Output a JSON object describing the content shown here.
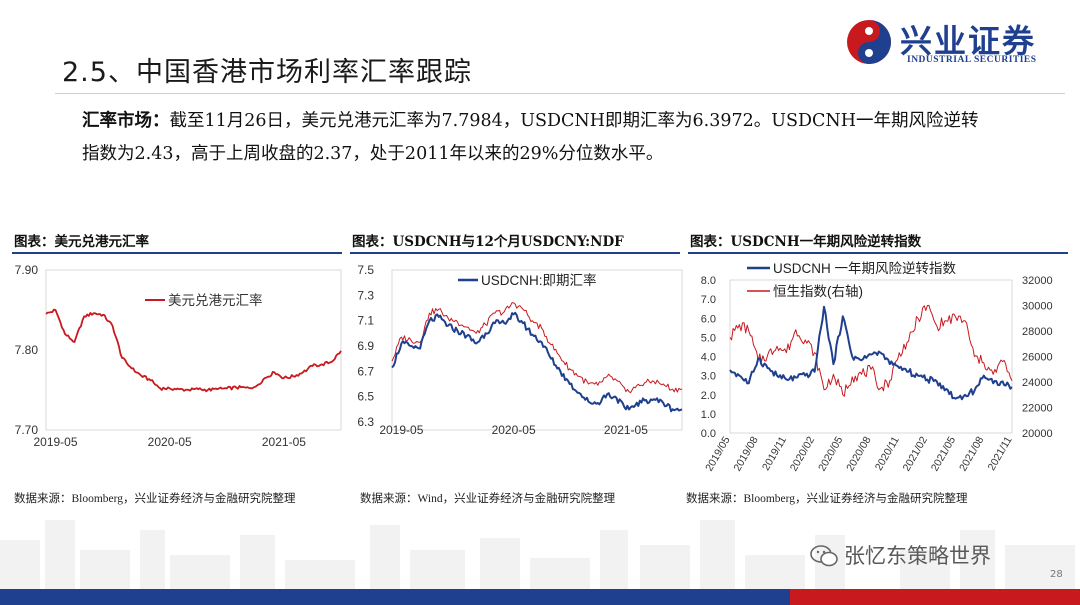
{
  "page": {
    "title": "2.5、中国香港市场利率汇率跟踪",
    "logo": {
      "cn": "兴业证券",
      "en": "INDUSTRIAL SECURITIES"
    },
    "summary": {
      "lead": "汇率市场：",
      "line1": "截至11月26日，美元兑港元汇率为7.7984，USDCNH即期汇率为6.3972。USDCNH一年期风险逆转",
      "line2": "指数为2.43，高于上周收盘的2.37，处于2011年以来的29%分位数水平。"
    },
    "watermark": "张忆东策略世界",
    "page_number": "28",
    "colors": {
      "red": "#c7191e",
      "navy": "#1f3f8f",
      "brand_blue": "#1f3f8f"
    }
  },
  "charts": [
    {
      "heading": "图表：美元兑港元汇率",
      "source": "数据来源：Bloomberg，兴业证券经济与金融研究院整理",
      "legend": "美元兑港元汇率",
      "yticks": [
        "7.90",
        "7.80",
        "7.70"
      ],
      "xticks": [
        "2019-05",
        "2020-05",
        "2021-05"
      ]
    },
    {
      "heading": "图表：USDCNH与12个月USDCNY:NDF",
      "source": "数据来源：Wind，兴业证券经济与金融研究院整理",
      "legend": "USDCNH:即期汇率",
      "yticks": [
        "7.5",
        "7.3",
        "7.1",
        "6.9",
        "6.7",
        "6.5",
        "6.3"
      ],
      "xticks": [
        "2019-05",
        "2020-05",
        "2021-05"
      ]
    },
    {
      "heading": "图表：USDCNH一年期风险逆转指数",
      "source": "数据来源：Bloomberg，兴业证券经济与金融研究院整理",
      "legend": [
        "USDCNH 一年期风险逆转指数",
        "恒生指数(右轴)"
      ],
      "yticks_left": [
        "8.0",
        "7.0",
        "6.0",
        "5.0",
        "4.0",
        "3.0",
        "2.0",
        "1.0",
        "0.0"
      ],
      "yticks_right": [
        "32000",
        "30000",
        "28000",
        "26000",
        "24000",
        "22000",
        "20000"
      ],
      "xticks": [
        "2019/05",
        "2019/08",
        "2019/11",
        "2020/02",
        "2020/05",
        "2020/08",
        "2020/11",
        "2021/02",
        "2021/05",
        "2021/08",
        "2021/11"
      ]
    }
  ],
  "chart_data": [
    {
      "type": "line",
      "title": "美元兑港元汇率",
      "x_range": [
        "2019-04",
        "2021-11"
      ],
      "ylim": [
        7.7,
        7.9
      ],
      "series": [
        {
          "name": "美元兑港元汇率",
          "color": "#c7191e",
          "x": [
            "2019-04",
            "2019-05",
            "2019-06",
            "2019-07",
            "2019-08",
            "2019-09",
            "2019-10",
            "2019-11",
            "2019-12",
            "2020-01",
            "2020-02",
            "2020-03",
            "2020-04",
            "2020-05",
            "2020-06",
            "2020-07",
            "2020-08",
            "2020-09",
            "2020-10",
            "2020-11",
            "2020-12",
            "2021-01",
            "2021-02",
            "2021-03",
            "2021-04",
            "2021-05",
            "2021-06",
            "2021-07",
            "2021-08",
            "2021-09",
            "2021-10",
            "2021-11"
          ],
          "y": [
            7.845,
            7.85,
            7.82,
            7.81,
            7.842,
            7.846,
            7.844,
            7.83,
            7.79,
            7.777,
            7.768,
            7.762,
            7.752,
            7.752,
            7.751,
            7.75,
            7.751,
            7.75,
            7.751,
            7.752,
            7.753,
            7.753,
            7.754,
            7.765,
            7.772,
            7.765,
            7.767,
            7.772,
            7.78,
            7.782,
            7.785,
            7.799
          ]
        }
      ]
    },
    {
      "type": "line",
      "title": "USDCNH与12个月USDCNY:NDF",
      "x_range": [
        "2019-04",
        "2021-11"
      ],
      "ylim": [
        6.3,
        7.5
      ],
      "series": [
        {
          "name": "USDCNH:即期汇率",
          "color": "#1f3f8f",
          "x": [
            "2019-04",
            "2019-05",
            "2019-06",
            "2019-07",
            "2019-08",
            "2019-09",
            "2019-10",
            "2019-11",
            "2019-12",
            "2020-01",
            "2020-02",
            "2020-03",
            "2020-04",
            "2020-05",
            "2020-06",
            "2020-07",
            "2020-08",
            "2020-09",
            "2020-10",
            "2020-11",
            "2020-12",
            "2021-01",
            "2021-02",
            "2021-03",
            "2021-04",
            "2021-05",
            "2021-06",
            "2021-07",
            "2021-08",
            "2021-09",
            "2021-10",
            "2021-11"
          ],
          "y": [
            6.73,
            6.92,
            6.9,
            6.88,
            7.1,
            7.13,
            7.06,
            7.02,
            6.98,
            6.92,
            7.0,
            7.08,
            7.08,
            7.15,
            7.08,
            6.99,
            6.93,
            6.8,
            6.7,
            6.6,
            6.53,
            6.46,
            6.45,
            6.52,
            6.49,
            6.4,
            6.43,
            6.47,
            6.48,
            6.45,
            6.4,
            6.4
          ]
        },
        {
          "name": "",
          "color": "#c7191e",
          "x": [
            "2019-04",
            "2019-05",
            "2019-06",
            "2019-07",
            "2019-08",
            "2019-09",
            "2019-10",
            "2019-11",
            "2019-12",
            "2020-01",
            "2020-02",
            "2020-03",
            "2020-04",
            "2020-05",
            "2020-06",
            "2020-07",
            "2020-08",
            "2020-09",
            "2020-10",
            "2020-11",
            "2020-12",
            "2021-01",
            "2021-02",
            "2021-03",
            "2021-04",
            "2021-05",
            "2021-06",
            "2021-07",
            "2021-08",
            "2021-09",
            "2021-10",
            "2021-11"
          ],
          "y": [
            6.78,
            6.97,
            6.95,
            6.93,
            7.16,
            7.19,
            7.12,
            7.09,
            7.05,
            7.0,
            7.07,
            7.16,
            7.17,
            7.24,
            7.19,
            7.1,
            7.04,
            6.91,
            6.81,
            6.72,
            6.66,
            6.6,
            6.59,
            6.66,
            6.63,
            6.54,
            6.57,
            6.61,
            6.62,
            6.6,
            6.56,
            6.56
          ]
        }
      ]
    },
    {
      "type": "line",
      "title": "USDCNH一年期风险逆转指数",
      "x_range": [
        "2019-05",
        "2021-11"
      ],
      "ylim_left": [
        0.0,
        8.0
      ],
      "ylim_right": [
        20000,
        32000
      ],
      "series": [
        {
          "name": "USDCNH 一年期风险逆转指数",
          "color": "#1f3f8f",
          "axis": "left",
          "x": [
            "2019-05",
            "2019-06",
            "2019-07",
            "2019-08",
            "2019-09",
            "2019-10",
            "2019-11",
            "2019-12",
            "2020-01",
            "2020-02",
            "2020-03",
            "2020-04",
            "2020-05",
            "2020-06",
            "2020-07",
            "2020-08",
            "2020-09",
            "2020-10",
            "2020-11",
            "2020-12",
            "2021-01",
            "2021-02",
            "2021-03",
            "2021-04",
            "2021-05",
            "2021-06",
            "2021-07",
            "2021-08",
            "2021-09",
            "2021-10",
            "2021-11"
          ],
          "y": [
            3.3,
            3.0,
            2.6,
            3.9,
            3.4,
            3.0,
            2.8,
            2.9,
            3.0,
            3.2,
            6.6,
            3.6,
            6.1,
            4.0,
            3.8,
            4.1,
            4.2,
            3.6,
            3.4,
            3.2,
            3.0,
            2.8,
            2.7,
            2.3,
            1.8,
            2.0,
            2.2,
            3.0,
            2.6,
            2.7,
            2.4
          ]
        },
        {
          "name": "恒生指数(右轴)",
          "color": "#c7191e",
          "axis": "right",
          "x": [
            "2019-05",
            "2019-06",
            "2019-07",
            "2019-08",
            "2019-09",
            "2019-10",
            "2019-11",
            "2019-12",
            "2020-01",
            "2020-02",
            "2020-03",
            "2020-04",
            "2020-05",
            "2020-06",
            "2020-07",
            "2020-08",
            "2020-09",
            "2020-10",
            "2020-11",
            "2020-12",
            "2021-01",
            "2021-02",
            "2021-03",
            "2021-04",
            "2021-05",
            "2021-06",
            "2021-07",
            "2021-08",
            "2021-09",
            "2021-10",
            "2021-11"
          ],
          "y": [
            27500,
            28500,
            28000,
            25700,
            26100,
            26800,
            26300,
            28100,
            27300,
            26300,
            23400,
            24600,
            23000,
            24400,
            24600,
            25000,
            23500,
            24100,
            26300,
            27200,
            29000,
            30000,
            28400,
            28800,
            29100,
            28800,
            26000,
            25500,
            24600,
            25600,
            24100
          ]
        }
      ]
    }
  ]
}
